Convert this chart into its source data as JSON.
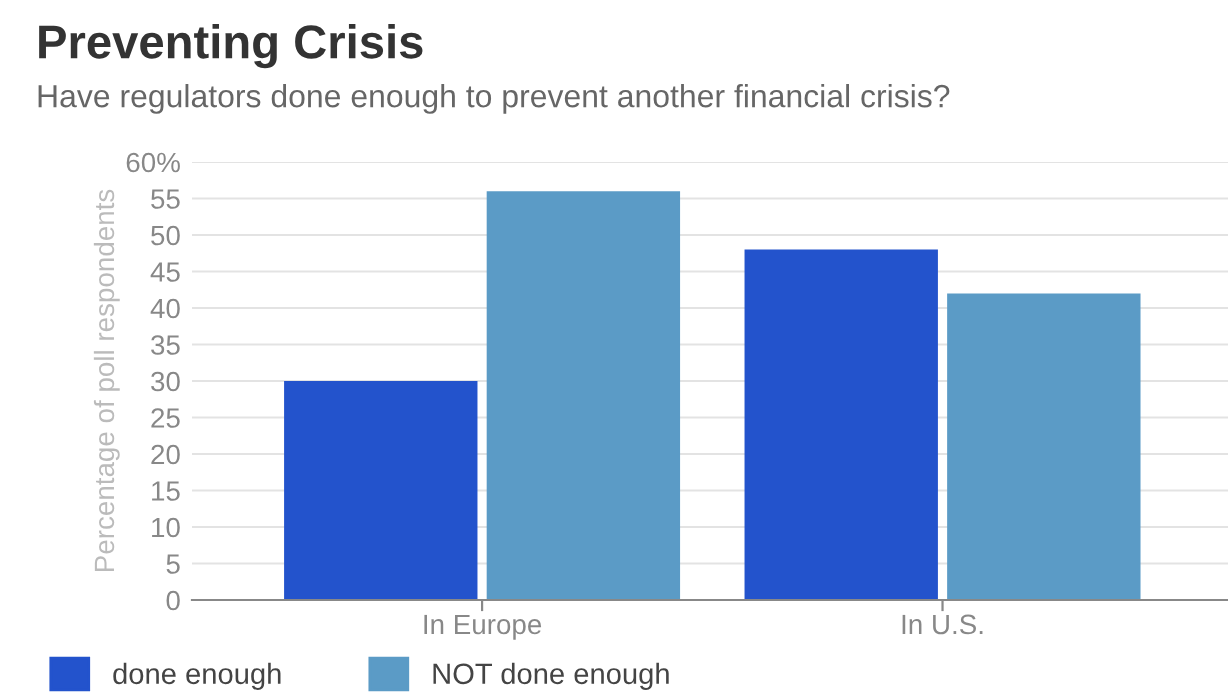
{
  "chart_data": {
    "type": "bar",
    "title": "Preventing Crisis",
    "subtitle": "Have regulators done enough to prevent another financial crisis?",
    "ylabel": "Percentage of poll respondents",
    "categories": [
      "In Europe",
      "In U.S."
    ],
    "series": [
      {
        "name": "done enough",
        "color": "#2353cc",
        "values": [
          30,
          48
        ]
      },
      {
        "name": "NOT done enough",
        "color": "#5b9bc6",
        "values": [
          56,
          42
        ]
      }
    ],
    "ylim": [
      0,
      60
    ],
    "yticks": [
      0,
      5,
      10,
      15,
      20,
      25,
      30,
      35,
      40,
      45,
      50,
      55,
      {
        "value": 60,
        "label": "60%"
      }
    ],
    "grid": "y",
    "legend": "bottom left"
  }
}
